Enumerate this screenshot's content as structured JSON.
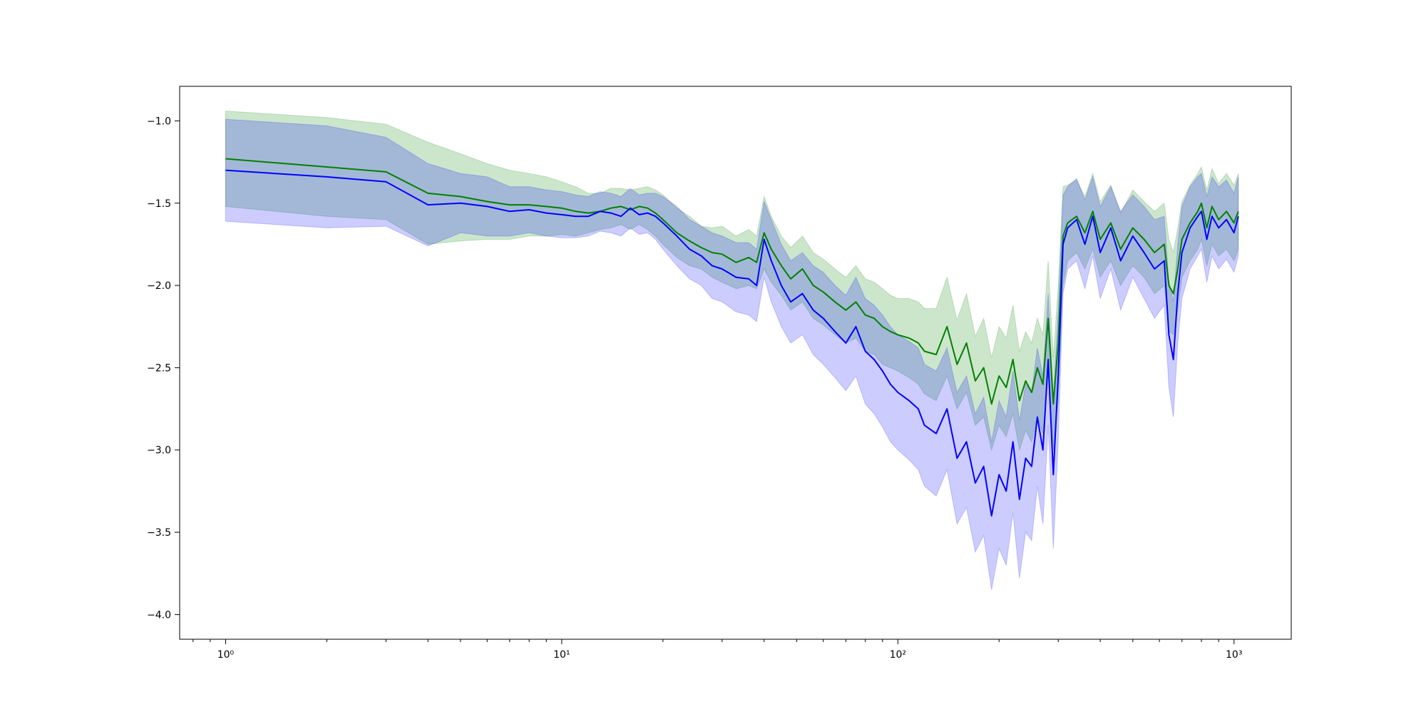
{
  "chart_data": {
    "type": "line",
    "title": "",
    "xlabel": "",
    "ylabel": "",
    "x_scale": "log",
    "xlim": [
      0.73,
      1480
    ],
    "ylim": [
      -4.15,
      -0.79
    ],
    "grid": false,
    "legend": "none",
    "x_tick_values": [
      1,
      10,
      100,
      1000
    ],
    "x_tick_labels": [
      "10⁰",
      "10¹",
      "10²",
      "10³"
    ],
    "y_tick_values": [
      -1.0,
      -1.5,
      -2.0,
      -2.5,
      -3.0,
      -3.5,
      -4.0
    ],
    "y_tick_labels": [
      "−1.0",
      "−1.5",
      "−2.0",
      "−2.5",
      "−3.0",
      "−3.5",
      "−4.0"
    ],
    "series": [
      {
        "color": "#008000",
        "band_color": "#008000",
        "band_opacity": 0.2,
        "x": [
          1,
          2,
          3,
          4,
          5,
          6,
          7,
          8,
          9,
          10,
          11,
          12,
          13,
          14,
          15,
          16,
          17,
          18,
          19,
          20,
          22,
          24,
          26,
          28,
          30,
          33,
          36,
          38,
          40,
          42,
          45,
          48,
          52,
          56,
          60,
          65,
          70,
          75,
          80,
          85,
          90,
          95,
          100,
          108,
          115,
          120,
          130,
          140,
          150,
          160,
          170,
          180,
          190,
          200,
          210,
          220,
          230,
          240,
          250,
          260,
          270,
          280,
          290,
          300,
          310,
          320,
          340,
          360,
          380,
          400,
          430,
          460,
          500,
          540,
          580,
          620,
          640,
          660,
          680,
          700,
          740,
          780,
          800,
          830,
          860,
          900,
          950,
          1000,
          1030
        ],
        "y": [
          -1.23,
          -1.28,
          -1.31,
          -1.44,
          -1.46,
          -1.49,
          -1.51,
          -1.51,
          -1.52,
          -1.53,
          -1.55,
          -1.56,
          -1.55,
          -1.53,
          -1.52,
          -1.54,
          -1.52,
          -1.53,
          -1.56,
          -1.6,
          -1.68,
          -1.73,
          -1.77,
          -1.8,
          -1.81,
          -1.86,
          -1.83,
          -1.86,
          -1.68,
          -1.78,
          -1.88,
          -1.96,
          -1.9,
          -2.0,
          -2.04,
          -2.1,
          -2.15,
          -2.1,
          -2.18,
          -2.2,
          -2.25,
          -2.28,
          -2.3,
          -2.32,
          -2.35,
          -2.4,
          -2.42,
          -2.25,
          -2.48,
          -2.35,
          -2.58,
          -2.5,
          -2.72,
          -2.55,
          -2.62,
          -2.45,
          -2.7,
          -2.58,
          -2.65,
          -2.5,
          -2.6,
          -2.2,
          -2.72,
          -2.35,
          -1.7,
          -1.62,
          -1.58,
          -1.68,
          -1.55,
          -1.72,
          -1.62,
          -1.78,
          -1.65,
          -1.72,
          -1.8,
          -1.75,
          -2.0,
          -2.05,
          -1.9,
          -1.72,
          -1.62,
          -1.55,
          -1.5,
          -1.65,
          -1.52,
          -1.6,
          -1.55,
          -1.62,
          -1.55
        ],
        "lower": [
          -1.52,
          -1.58,
          -1.6,
          -1.75,
          -1.73,
          -1.72,
          -1.72,
          -1.7,
          -1.7,
          -1.69,
          -1.7,
          -1.68,
          -1.66,
          -1.65,
          -1.63,
          -1.66,
          -1.63,
          -1.66,
          -1.7,
          -1.75,
          -1.83,
          -1.88,
          -1.9,
          -1.95,
          -1.98,
          -2.02,
          -2.0,
          -2.02,
          -1.9,
          -1.98,
          -2.06,
          -2.15,
          -2.1,
          -2.2,
          -2.24,
          -2.3,
          -2.35,
          -2.32,
          -2.4,
          -2.42,
          -2.48,
          -2.5,
          -2.52,
          -2.56,
          -2.6,
          -2.66,
          -2.7,
          -2.55,
          -2.75,
          -2.65,
          -2.85,
          -2.8,
          -3.0,
          -2.85,
          -2.92,
          -2.78,
          -3.0,
          -2.88,
          -2.95,
          -2.8,
          -2.9,
          -2.55,
          -3.0,
          -2.7,
          -2.0,
          -1.85,
          -1.8,
          -1.9,
          -1.78,
          -1.95,
          -1.85,
          -2.0,
          -1.88,
          -1.95,
          -2.05,
          -2.0,
          -2.28,
          -2.3,
          -2.15,
          -1.95,
          -1.85,
          -1.78,
          -1.72,
          -1.88,
          -1.75,
          -1.82,
          -1.78,
          -1.85,
          -1.78
        ],
        "upper": [
          -0.94,
          -0.98,
          -1.02,
          -1.13,
          -1.2,
          -1.26,
          -1.3,
          -1.32,
          -1.34,
          -1.37,
          -1.4,
          -1.44,
          -1.44,
          -1.41,
          -1.41,
          -1.42,
          -1.41,
          -1.4,
          -1.42,
          -1.45,
          -1.53,
          -1.58,
          -1.64,
          -1.65,
          -1.64,
          -1.7,
          -1.66,
          -1.7,
          -1.46,
          -1.58,
          -1.7,
          -1.77,
          -1.7,
          -1.8,
          -1.84,
          -1.9,
          -1.95,
          -1.88,
          -1.96,
          -1.98,
          -2.02,
          -2.06,
          -2.08,
          -2.08,
          -2.1,
          -2.14,
          -2.14,
          -1.95,
          -2.21,
          -2.05,
          -2.31,
          -2.2,
          -2.44,
          -2.25,
          -2.32,
          -2.12,
          -2.4,
          -2.28,
          -2.35,
          -2.2,
          -2.3,
          -1.85,
          -2.44,
          -2.0,
          -1.4,
          -1.39,
          -1.36,
          -1.46,
          -1.32,
          -1.49,
          -1.39,
          -1.56,
          -1.42,
          -1.49,
          -1.55,
          -1.5,
          -1.72,
          -1.8,
          -1.65,
          -1.49,
          -1.39,
          -1.32,
          -1.28,
          -1.42,
          -1.29,
          -1.38,
          -1.32,
          -1.39,
          -1.32
        ]
      },
      {
        "color": "#0000ff",
        "band_color": "#0000ff",
        "band_opacity": 0.2,
        "x": [
          1,
          2,
          3,
          4,
          5,
          6,
          7,
          8,
          9,
          10,
          11,
          12,
          13,
          14,
          15,
          16,
          17,
          18,
          19,
          20,
          22,
          24,
          26,
          28,
          30,
          33,
          36,
          38,
          40,
          42,
          45,
          48,
          52,
          56,
          60,
          65,
          70,
          75,
          80,
          85,
          90,
          95,
          100,
          108,
          115,
          120,
          130,
          140,
          150,
          160,
          170,
          180,
          190,
          200,
          210,
          220,
          230,
          240,
          250,
          260,
          270,
          280,
          290,
          300,
          310,
          320,
          340,
          360,
          380,
          400,
          430,
          460,
          500,
          540,
          580,
          620,
          640,
          660,
          680,
          700,
          740,
          780,
          800,
          830,
          860,
          900,
          950,
          1000,
          1030
        ],
        "y": [
          -1.3,
          -1.34,
          -1.37,
          -1.51,
          -1.5,
          -1.52,
          -1.55,
          -1.54,
          -1.56,
          -1.57,
          -1.58,
          -1.58,
          -1.55,
          -1.56,
          -1.58,
          -1.53,
          -1.57,
          -1.56,
          -1.58,
          -1.62,
          -1.7,
          -1.78,
          -1.82,
          -1.88,
          -1.9,
          -1.95,
          -1.96,
          -2.0,
          -1.72,
          -1.85,
          -2.0,
          -2.1,
          -2.05,
          -2.15,
          -2.2,
          -2.28,
          -2.35,
          -2.25,
          -2.4,
          -2.45,
          -2.52,
          -2.6,
          -2.65,
          -2.7,
          -2.75,
          -2.85,
          -2.9,
          -2.75,
          -3.05,
          -2.95,
          -3.2,
          -3.1,
          -3.4,
          -3.15,
          -3.25,
          -2.95,
          -3.3,
          -3.05,
          -3.1,
          -2.8,
          -3.0,
          -2.45,
          -3.15,
          -2.55,
          -1.75,
          -1.65,
          -1.6,
          -1.75,
          -1.58,
          -1.8,
          -1.65,
          -1.85,
          -1.7,
          -1.8,
          -1.9,
          -1.85,
          -2.3,
          -2.45,
          -2.05,
          -1.8,
          -1.65,
          -1.58,
          -1.55,
          -1.72,
          -1.58,
          -1.65,
          -1.6,
          -1.68,
          -1.58
        ],
        "lower": [
          -1.61,
          -1.65,
          -1.64,
          -1.76,
          -1.68,
          -1.7,
          -1.7,
          -1.68,
          -1.7,
          -1.71,
          -1.71,
          -1.7,
          -1.67,
          -1.68,
          -1.7,
          -1.65,
          -1.69,
          -1.68,
          -1.72,
          -1.78,
          -1.88,
          -1.96,
          -2.0,
          -2.08,
          -2.1,
          -2.16,
          -2.18,
          -2.22,
          -1.95,
          -2.1,
          -2.25,
          -2.35,
          -2.3,
          -2.42,
          -2.48,
          -2.56,
          -2.64,
          -2.55,
          -2.72,
          -2.78,
          -2.86,
          -2.95,
          -3.0,
          -3.06,
          -3.12,
          -3.22,
          -3.28,
          -3.12,
          -3.45,
          -3.35,
          -3.62,
          -3.52,
          -3.85,
          -3.6,
          -3.7,
          -3.38,
          -3.78,
          -3.5,
          -3.55,
          -3.22,
          -3.45,
          -2.85,
          -3.6,
          -2.95,
          -2.05,
          -1.9,
          -1.85,
          -2.02,
          -1.82,
          -2.08,
          -1.9,
          -2.15,
          -1.95,
          -2.08,
          -2.2,
          -2.12,
          -2.62,
          -2.8,
          -2.35,
          -2.08,
          -1.9,
          -1.82,
          -1.78,
          -1.98,
          -1.82,
          -1.9,
          -1.84,
          -1.92,
          -1.82
        ],
        "upper": [
          -0.99,
          -1.03,
          -1.1,
          -1.26,
          -1.32,
          -1.34,
          -1.4,
          -1.4,
          -1.42,
          -1.43,
          -1.45,
          -1.46,
          -1.43,
          -1.44,
          -1.46,
          -1.41,
          -1.45,
          -1.44,
          -1.44,
          -1.46,
          -1.52,
          -1.6,
          -1.64,
          -1.68,
          -1.7,
          -1.74,
          -1.74,
          -1.78,
          -1.49,
          -1.6,
          -1.75,
          -1.85,
          -1.8,
          -1.88,
          -1.92,
          -2.0,
          -2.06,
          -1.95,
          -2.08,
          -2.12,
          -2.18,
          -2.25,
          -2.3,
          -2.34,
          -2.38,
          -2.48,
          -2.52,
          -2.38,
          -2.65,
          -2.55,
          -2.78,
          -2.68,
          -2.95,
          -2.7,
          -2.8,
          -2.52,
          -2.82,
          -2.6,
          -2.65,
          -2.38,
          -2.55,
          -2.05,
          -2.7,
          -2.15,
          -1.45,
          -1.4,
          -1.35,
          -1.48,
          -1.34,
          -1.52,
          -1.4,
          -1.55,
          -1.45,
          -1.52,
          -1.6,
          -1.58,
          -1.98,
          -2.1,
          -1.75,
          -1.52,
          -1.4,
          -1.34,
          -1.32,
          -1.46,
          -1.34,
          -1.4,
          -1.36,
          -1.44,
          -1.34
        ]
      }
    ]
  }
}
